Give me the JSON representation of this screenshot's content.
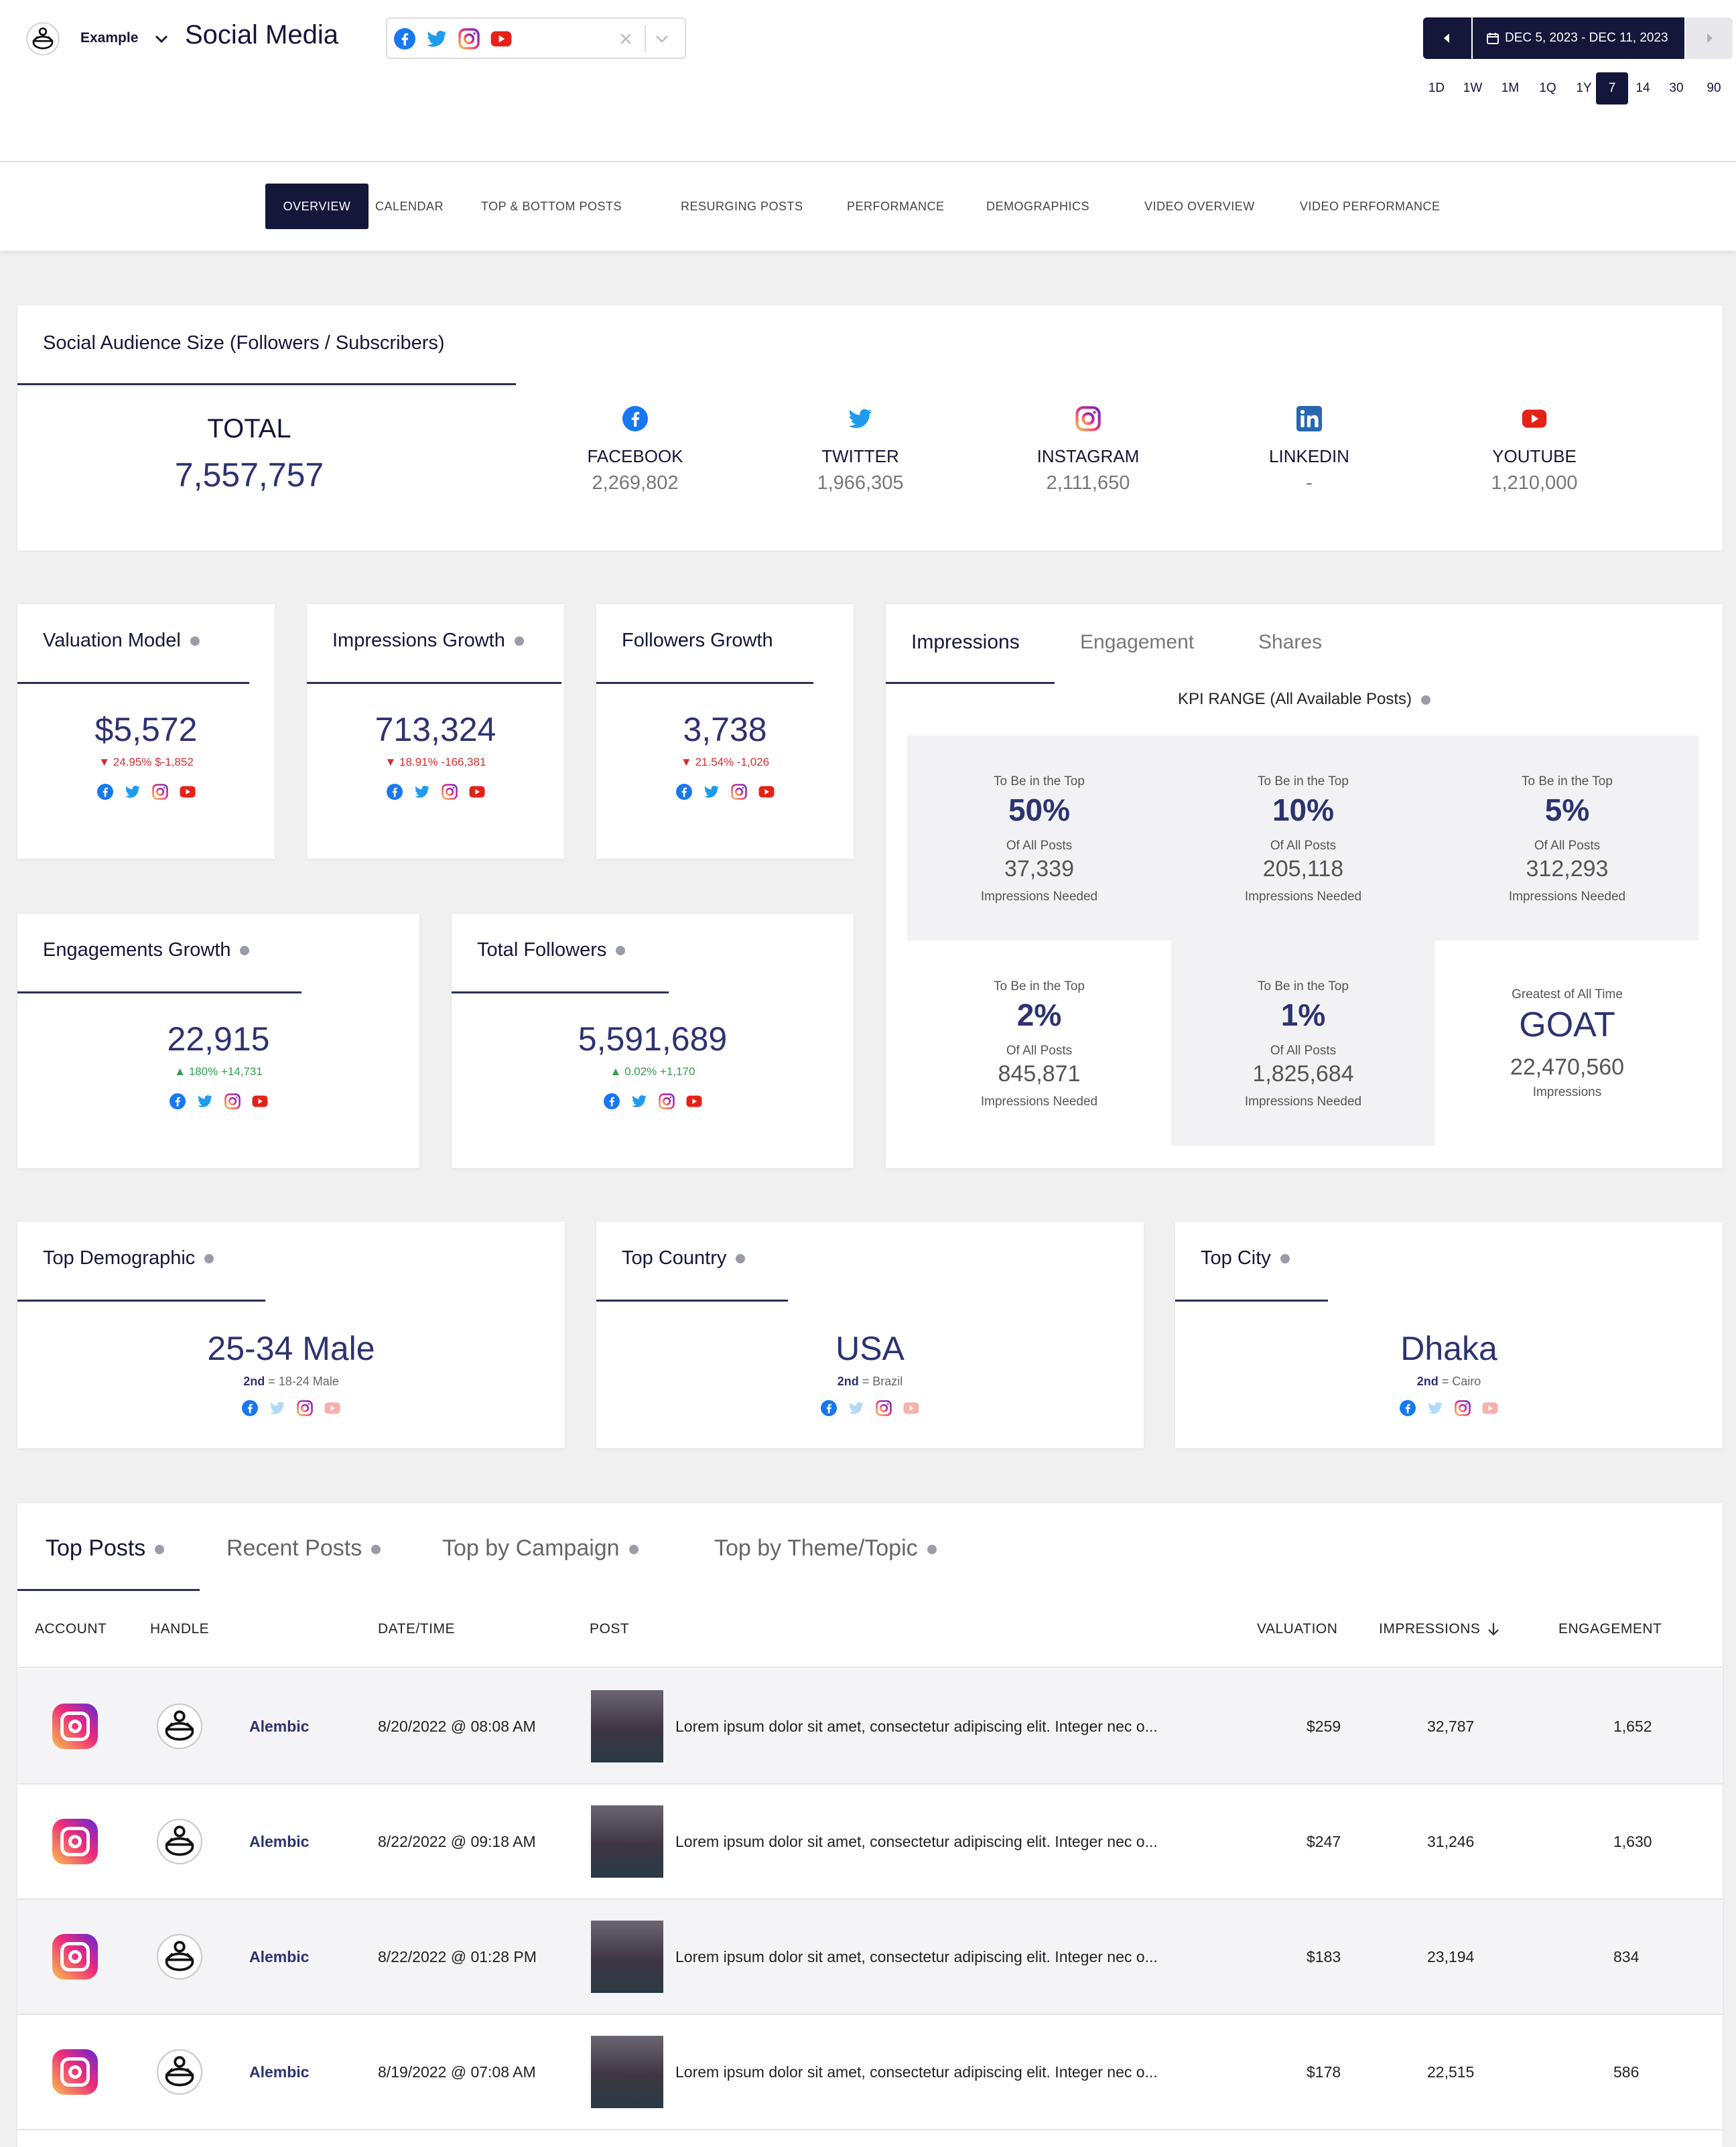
{
  "header": {
    "account_name": "Example",
    "page_title": "Social Media",
    "date_range": "DEC 5, 2023 - DEC 11, 2023",
    "ranges": [
      "1D",
      "1W",
      "1M",
      "1Q",
      "1Y",
      "7",
      "14",
      "30",
      "90"
    ],
    "active_range": "7"
  },
  "nav_tabs": [
    "OVERVIEW",
    "CALENDAR",
    "TOP & BOTTOM POSTS",
    "RESURGING POSTS",
    "PERFORMANCE",
    "DEMOGRAPHICS",
    "VIDEO OVERVIEW",
    "VIDEO PERFORMANCE"
  ],
  "audience": {
    "title": "Social Audience Size (Followers / Subscribers)",
    "total_label": "TOTAL",
    "total_value": "7,557,757",
    "platforms": [
      {
        "name": "FACEBOOK",
        "value": "2,269,802"
      },
      {
        "name": "TWITTER",
        "value": "1,966,305"
      },
      {
        "name": "INSTAGRAM",
        "value": "2,111,650"
      },
      {
        "name": "LINKEDIN",
        "value": "-"
      },
      {
        "name": "YOUTUBE",
        "value": "1,210,000"
      }
    ]
  },
  "metrics": [
    {
      "title": "Valuation Model",
      "value": "$5,572",
      "delta": "▼ 24.95% $-1,852",
      "trend": "down"
    },
    {
      "title": "Impressions Growth",
      "value": "713,324",
      "delta": "▼ 18.91% -166,381",
      "trend": "down"
    },
    {
      "title": "Followers Growth",
      "value": "3,738",
      "delta": "▼ 21.54% -1,026",
      "trend": "down"
    },
    {
      "title": "Engagements Growth",
      "value": "22,915",
      "delta": "▲ 180% +14,731",
      "trend": "up"
    },
    {
      "title": "Total Followers",
      "value": "5,591,689",
      "delta": "▲ 0.02% +1,170",
      "trend": "up"
    }
  ],
  "kpi": {
    "tabs": [
      "Impressions",
      "Engagement",
      "Shares"
    ],
    "range_title": "KPI RANGE (All Available Posts)",
    "cells": [
      {
        "top": "To Be in the Top",
        "pct": "50%",
        "of": "Of All Posts",
        "value": "37,339",
        "needed": "Impressions Needed"
      },
      {
        "top": "To Be in the Top",
        "pct": "10%",
        "of": "Of All Posts",
        "value": "205,118",
        "needed": "Impressions Needed"
      },
      {
        "top": "To Be in the Top",
        "pct": "5%",
        "of": "Of All Posts",
        "value": "312,293",
        "needed": "Impressions Needed"
      },
      {
        "top": "To Be in the Top",
        "pct": "2%",
        "of": "Of All Posts",
        "value": "845,871",
        "needed": "Impressions Needed"
      },
      {
        "top": "To Be in the Top",
        "pct": "1%",
        "of": "Of All Posts",
        "value": "1,825,684",
        "needed": "Impressions Needed"
      }
    ],
    "goat": {
      "top": "Greatest of All Time",
      "label": "GOAT",
      "value": "22,470,560",
      "unit": "Impressions"
    }
  },
  "tops": [
    {
      "title": "Top Demographic",
      "value": "25-34 Male",
      "second_label": "2nd",
      "second": " = 18-24 Male"
    },
    {
      "title": "Top Country",
      "value": "USA",
      "second_label": "2nd",
      "second": " = Brazil"
    },
    {
      "title": "Top City",
      "value": "Dhaka",
      "second_label": "2nd",
      "second": " = Cairo"
    }
  ],
  "posts": {
    "tabs": [
      "Top Posts",
      "Recent Posts",
      "Top by Campaign",
      "Top by Theme/Topic"
    ],
    "columns": [
      "ACCOUNT",
      "HANDLE",
      "DATE/TIME",
      "POST",
      "VALUATION",
      "IMPRESSIONS",
      "ENGAGEMENT"
    ],
    "sort_icon": "arrow-down-icon",
    "rows": [
      {
        "handle": "Alembic",
        "date": "8/20/2022 @ 08:08 AM",
        "text": "Lorem ipsum dolor sit amet, consectetur adipiscing elit. Integer nec o...",
        "valuation": "$259",
        "impressions": "32,787",
        "engagement": "1,652"
      },
      {
        "handle": "Alembic",
        "date": "8/22/2022 @ 09:18 AM",
        "text": "Lorem ipsum dolor sit amet, consectetur adipiscing elit. Integer nec o...",
        "valuation": "$247",
        "impressions": "31,246",
        "engagement": "1,630"
      },
      {
        "handle": "Alembic",
        "date": "8/22/2022 @ 01:28 PM",
        "text": "Lorem ipsum dolor sit amet, consectetur adipiscing elit. Integer nec o...",
        "valuation": "$183",
        "impressions": "23,194",
        "engagement": "834"
      },
      {
        "handle": "Alembic",
        "date": "8/19/2022 @ 07:08 AM",
        "text": "Lorem ipsum dolor sit amet, consectetur adipiscing elit. Integer nec o...",
        "valuation": "$178",
        "impressions": "22,515",
        "engagement": "586"
      }
    ]
  },
  "colors": {
    "navy": "#14163a",
    "accent": "#2d3272",
    "facebook": "#1877f2",
    "twitter": "#1d9bf0",
    "youtube": "#e62117",
    "linkedin": "#2867b2",
    "down": "#d32f2f",
    "up": "#2e9e4f"
  }
}
